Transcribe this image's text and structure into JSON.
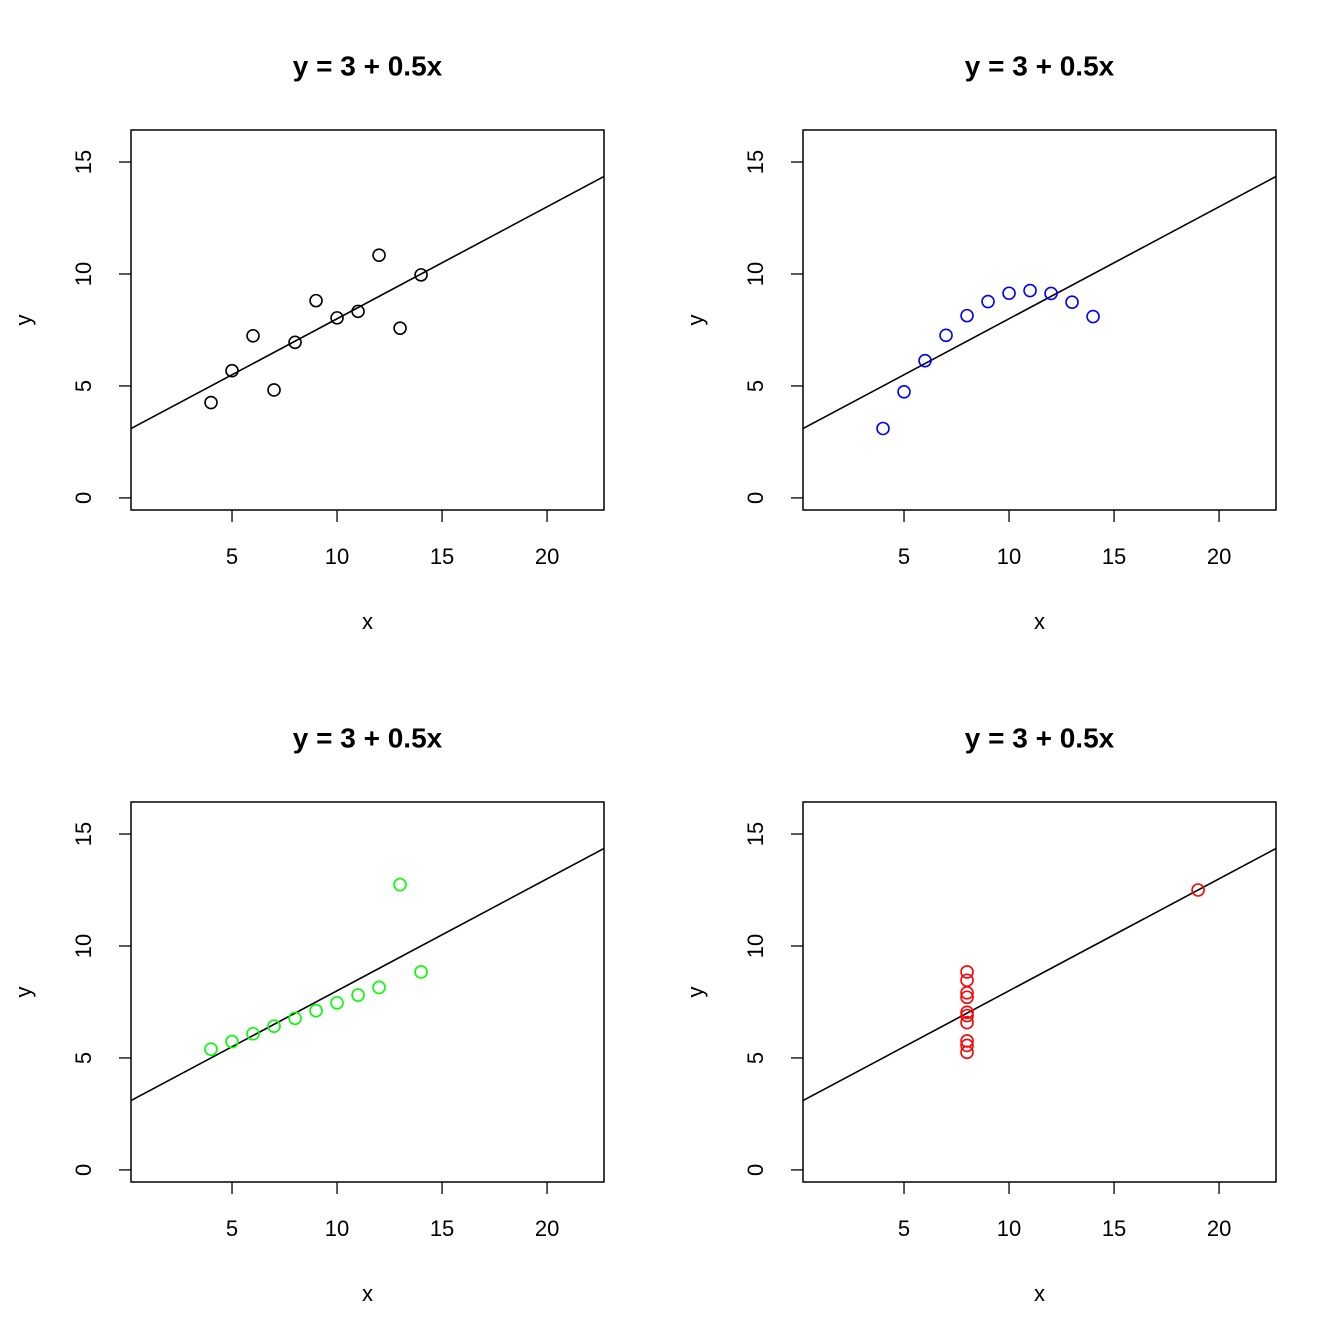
{
  "chart_data": [
    {
      "type": "scatter",
      "title": "y = 3 + 0.5x",
      "xlabel": "x",
      "ylabel": "y",
      "color": "#000000",
      "x": [
        10,
        8,
        13,
        9,
        11,
        14,
        6,
        4,
        12,
        7,
        5
      ],
      "y": [
        8.04,
        6.95,
        7.58,
        8.81,
        8.33,
        9.96,
        7.24,
        4.26,
        10.84,
        4.82,
        5.68
      ],
      "fit": {
        "intercept": 3,
        "slope": 0.5
      },
      "xlim": [
        0.19,
        22.71
      ],
      "ylim": [
        -0.54,
        16.43
      ],
      "xticks": [
        5,
        10,
        15,
        20
      ],
      "yticks": [
        0,
        5,
        10,
        15
      ]
    },
    {
      "type": "scatter",
      "title": "y = 3 + 0.5x",
      "xlabel": "x",
      "ylabel": "y",
      "color": "#0000ff",
      "x": [
        10,
        8,
        13,
        9,
        11,
        14,
        6,
        4,
        12,
        7,
        5
      ],
      "y": [
        9.14,
        8.14,
        8.74,
        8.77,
        9.26,
        8.1,
        6.13,
        3.1,
        9.13,
        7.26,
        4.74
      ],
      "fit": {
        "intercept": 3,
        "slope": 0.5
      },
      "xlim": [
        0.19,
        22.71
      ],
      "ylim": [
        -0.54,
        16.43
      ],
      "xticks": [
        5,
        10,
        15,
        20
      ],
      "yticks": [
        0,
        5,
        10,
        15
      ]
    },
    {
      "type": "scatter",
      "title": "y = 3 + 0.5x",
      "xlabel": "x",
      "ylabel": "y",
      "color": "#00ff00",
      "x": [
        10,
        8,
        13,
        9,
        11,
        14,
        6,
        4,
        12,
        7,
        5
      ],
      "y": [
        7.46,
        6.77,
        12.74,
        7.11,
        7.81,
        8.84,
        6.08,
        5.39,
        8.15,
        6.42,
        5.73
      ],
      "fit": {
        "intercept": 3,
        "slope": 0.5
      },
      "xlim": [
        0.19,
        22.71
      ],
      "ylim": [
        -0.54,
        16.43
      ],
      "xticks": [
        5,
        10,
        15,
        20
      ],
      "yticks": [
        0,
        5,
        10,
        15
      ]
    },
    {
      "type": "scatter",
      "title": "y = 3 + 0.5x",
      "xlabel": "x",
      "ylabel": "y",
      "color": "#ff0000",
      "x": [
        8,
        8,
        8,
        8,
        8,
        8,
        8,
        19,
        8,
        8,
        8
      ],
      "y": [
        6.58,
        5.76,
        7.71,
        8.84,
        8.47,
        7.04,
        5.25,
        12.5,
        5.56,
        7.91,
        6.89
      ],
      "fit": {
        "intercept": 3,
        "slope": 0.5
      },
      "xlim": [
        0.19,
        22.71
      ],
      "ylim": [
        -0.54,
        16.43
      ],
      "xticks": [
        5,
        10,
        15,
        20
      ],
      "yticks": [
        0,
        5,
        10,
        15
      ]
    }
  ]
}
